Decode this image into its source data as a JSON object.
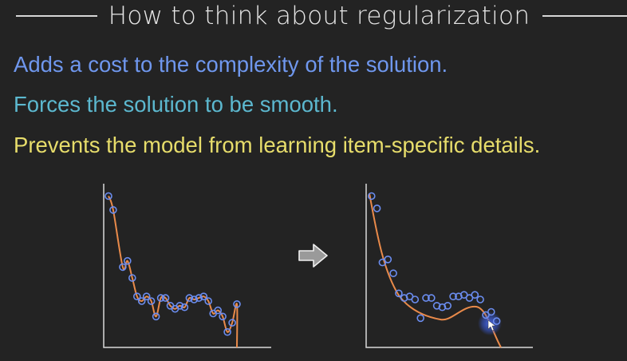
{
  "slide": {
    "title": "How to think about regularization",
    "bullets": [
      {
        "text": "Adds a cost to the complexity of the solution.",
        "color": "#6f97ee"
      },
      {
        "text": "Forces the solution to be smooth.",
        "color": "#5cb8cf"
      },
      {
        "text": "Prevents the model from learning item-specific details.",
        "color": "#e7dd6b"
      }
    ]
  },
  "colors": {
    "background": "#232323",
    "axis": "#d9d9d9",
    "curve": "#e98a4a",
    "points": "#6b8df0",
    "arrow_fill": "#9a9a9a",
    "arrow_stroke": "#f0f0f0",
    "cursor_glow": "#3a5bd8"
  },
  "icons": {
    "arrow": "right-arrow-icon",
    "cursor": "mouse-cursor-icon"
  },
  "chart_data": [
    {
      "type": "scatter",
      "fit": "overfit-interpolating-curve",
      "x": [
        1,
        2,
        4,
        5,
        6,
        7,
        8,
        9,
        10,
        11,
        12,
        13,
        14,
        15,
        16,
        17,
        18,
        19,
        20,
        21,
        22,
        23,
        24,
        25,
        26,
        27,
        28
      ],
      "y": [
        9.8,
        8.9,
        5.2,
        5.6,
        4.5,
        3.3,
        3.0,
        3.3,
        3.0,
        2.0,
        3.2,
        3.2,
        2.7,
        2.5,
        2.7,
        2.6,
        3.2,
        3.1,
        3.2,
        3.3,
        3.0,
        2.2,
        2.4,
        2.0,
        1.0,
        1.6,
        2.8
      ],
      "curve_through_points": true
    },
    {
      "type": "scatter",
      "fit": "smooth-regularized-curve",
      "x": [
        1,
        2,
        3,
        4,
        5,
        6,
        7,
        8,
        9,
        10,
        11,
        12,
        13,
        14,
        15,
        16,
        17,
        18,
        19,
        20,
        21,
        22,
        23,
        24
      ],
      "y": [
        9.8,
        9.0,
        5.5,
        5.7,
        4.8,
        3.5,
        3.2,
        3.3,
        3.1,
        1.9,
        3.2,
        3.2,
        2.7,
        2.6,
        2.7,
        3.3,
        3.3,
        3.4,
        3.2,
        3.4,
        3.1,
        2.1,
        2.3,
        1.7
      ],
      "curve_through_points": false
    }
  ]
}
